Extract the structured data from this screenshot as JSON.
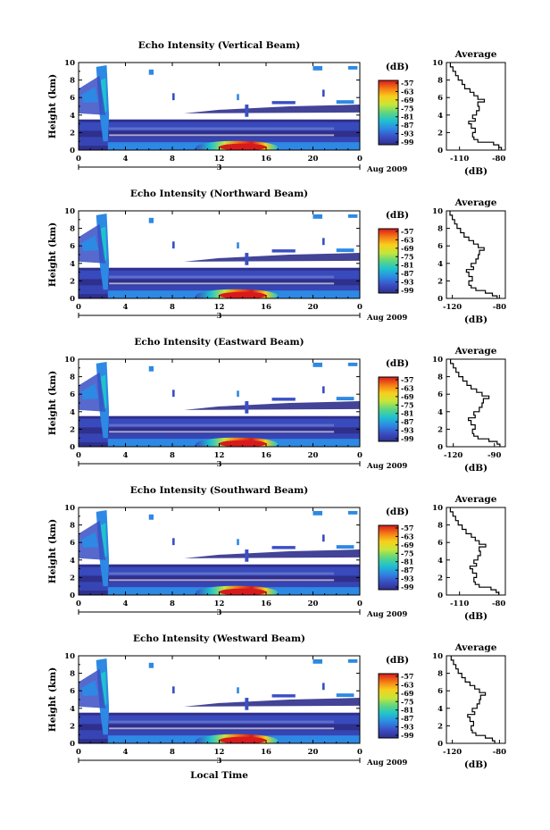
{
  "figure": {
    "time_axis_label": "Local Time",
    "date_label": "Aug 2009",
    "day_label": "3",
    "colorbar_unit": "(dB)",
    "colorbar_ticks": [
      "-57",
      "-63",
      "-69",
      "-75",
      "-81",
      "-87",
      "-93",
      "-99"
    ],
    "colorbar_colors": [
      "#d71a1c",
      "#f47a15",
      "#f8cf1c",
      "#c7e639",
      "#5ed67f",
      "#1fc2cf",
      "#2d89e3",
      "#3a4fc4",
      "#2f2f8c"
    ],
    "average_title": "Average",
    "average_xlabel": "(dB)",
    "height_label": "Height (km)"
  },
  "chart_data": [
    {
      "type": "heatmap",
      "title": "Echo Intensity (Vertical Beam)",
      "ylabel": "Height (km)",
      "xlabel": "",
      "xticks": [
        "0",
        "4",
        "8",
        "12",
        "16",
        "20",
        "0"
      ],
      "yticks": [
        "0",
        "2",
        "4",
        "6",
        "8",
        "10"
      ],
      "xlim": [
        0,
        24
      ],
      "ylim": [
        0,
        10
      ],
      "zlim": [
        -99,
        -57
      ],
      "profile": {
        "xticks": [
          "-110",
          "-80"
        ],
        "xlim": [
          -120,
          -75
        ],
        "ylim": [
          0,
          10
        ],
        "height": [
          0.3,
          0.6,
          0.9,
          1.2,
          1.5,
          2.0,
          2.5,
          3.0,
          3.3,
          3.6,
          4.0,
          4.5,
          5.0,
          5.5,
          5.8,
          6.2,
          6.6,
          7.0,
          7.5,
          8.0,
          8.5,
          9.0,
          9.5,
          10.0
        ],
        "value": [
          -78,
          -80,
          -84,
          -96,
          -99,
          -100,
          -98,
          -101,
          -103,
          -98,
          -100,
          -97,
          -95,
          -96,
          -91,
          -96,
          -99,
          -102,
          -106,
          -108,
          -111,
          -113,
          -115,
          -117
        ]
      }
    },
    {
      "type": "heatmap",
      "title": "Echo Intensity (Northward Beam)",
      "ylabel": "Height (km)",
      "xlabel": "",
      "xticks": [
        "0",
        "4",
        "8",
        "12",
        "16",
        "20",
        "0"
      ],
      "yticks": [
        "0",
        "2",
        "4",
        "6",
        "8",
        "10"
      ],
      "xlim": [
        0,
        24
      ],
      "ylim": [
        0,
        10
      ],
      "zlim": [
        -99,
        -57
      ],
      "profile": {
        "xticks": [
          "-120",
          "-80"
        ],
        "xlim": [
          -125,
          -75
        ],
        "ylim": [
          0,
          10
        ],
        "height": [
          0.3,
          0.6,
          0.9,
          1.2,
          1.5,
          2.0,
          2.5,
          3.0,
          3.3,
          3.6,
          4.0,
          4.5,
          5.0,
          5.5,
          5.8,
          6.2,
          6.6,
          7.0,
          7.5,
          8.0,
          8.5,
          9.0,
          9.5,
          10.0
        ],
        "value": [
          -82,
          -86,
          -92,
          -100,
          -104,
          -106,
          -103,
          -106,
          -108,
          -102,
          -104,
          -100,
          -98,
          -97,
          -93,
          -98,
          -102,
          -106,
          -110,
          -113,
          -116,
          -118,
          -120,
          -122
        ]
      }
    },
    {
      "type": "heatmap",
      "title": "Echo Intensity (Eastward Beam)",
      "ylabel": "Height (km)",
      "xlabel": "",
      "xticks": [
        "0",
        "4",
        "8",
        "12",
        "16",
        "20",
        "0"
      ],
      "yticks": [
        "0",
        "2",
        "4",
        "6",
        "8",
        "10"
      ],
      "xlim": [
        0,
        24
      ],
      "ylim": [
        0,
        10
      ],
      "zlim": [
        -99,
        -57
      ],
      "profile": {
        "xticks": [
          "-120",
          "-90"
        ],
        "xlim": [
          -125,
          -82
        ],
        "ylim": [
          0,
          10
        ],
        "height": [
          0.3,
          0.6,
          0.9,
          1.2,
          1.5,
          2.0,
          2.5,
          3.0,
          3.3,
          3.6,
          4.0,
          4.5,
          5.0,
          5.5,
          5.8,
          6.2,
          6.6,
          7.0,
          7.5,
          8.0,
          8.5,
          9.0,
          9.5,
          10.0
        ],
        "value": [
          -86,
          -88,
          -94,
          -102,
          -105,
          -106,
          -104,
          -107,
          -109,
          -104,
          -105,
          -101,
          -99,
          -98,
          -94,
          -99,
          -103,
          -107,
          -110,
          -113,
          -116,
          -118,
          -120,
          -122
        ]
      }
    },
    {
      "type": "heatmap",
      "title": "Echo Intensity (Southward Beam)",
      "ylabel": "Height (km)",
      "xlabel": "",
      "xticks": [
        "0",
        "4",
        "8",
        "12",
        "16",
        "20",
        "0"
      ],
      "yticks": [
        "0",
        "2",
        "4",
        "6",
        "8",
        "10"
      ],
      "xlim": [
        0,
        24
      ],
      "ylim": [
        0,
        10
      ],
      "zlim": [
        -99,
        -57
      ],
      "profile": {
        "xticks": [
          "-110",
          "-80"
        ],
        "xlim": [
          -120,
          -75
        ],
        "ylim": [
          0,
          10
        ],
        "height": [
          0.3,
          0.6,
          0.9,
          1.2,
          1.5,
          2.0,
          2.5,
          3.0,
          3.3,
          3.6,
          4.0,
          4.5,
          5.0,
          5.5,
          5.8,
          6.2,
          6.6,
          7.0,
          7.5,
          8.0,
          8.5,
          9.0,
          9.5,
          10.0
        ],
        "value": [
          -80,
          -82,
          -86,
          -95,
          -98,
          -99,
          -97,
          -100,
          -102,
          -97,
          -99,
          -96,
          -94,
          -95,
          -90,
          -95,
          -98,
          -101,
          -105,
          -108,
          -111,
          -113,
          -115,
          -117
        ]
      }
    },
    {
      "type": "heatmap",
      "title": "Echo Intensity (Westward Beam)",
      "ylabel": "Height (km)",
      "xlabel": "Local Time",
      "xticks": [
        "0",
        "4",
        "8",
        "12",
        "16",
        "20",
        "0"
      ],
      "yticks": [
        "0",
        "2",
        "4",
        "6",
        "8",
        "10"
      ],
      "xlim": [
        0,
        24
      ],
      "ylim": [
        0,
        10
      ],
      "zlim": [
        -99,
        -57
      ],
      "profile": {
        "xticks": [
          "-120",
          "-80"
        ],
        "xlim": [
          -125,
          -75
        ],
        "ylim": [
          0,
          10
        ],
        "height": [
          0.3,
          0.6,
          0.9,
          1.2,
          1.5,
          2.0,
          2.5,
          3.0,
          3.3,
          3.6,
          4.0,
          4.5,
          5.0,
          5.5,
          5.8,
          6.2,
          6.6,
          7.0,
          7.5,
          8.0,
          8.5,
          9.0,
          9.5,
          10.0
        ],
        "value": [
          -84,
          -86,
          -92,
          -100,
          -103,
          -104,
          -102,
          -105,
          -107,
          -101,
          -103,
          -99,
          -97,
          -96,
          -92,
          -97,
          -101,
          -105,
          -109,
          -112,
          -115,
          -117,
          -119,
          -121
        ]
      }
    }
  ]
}
